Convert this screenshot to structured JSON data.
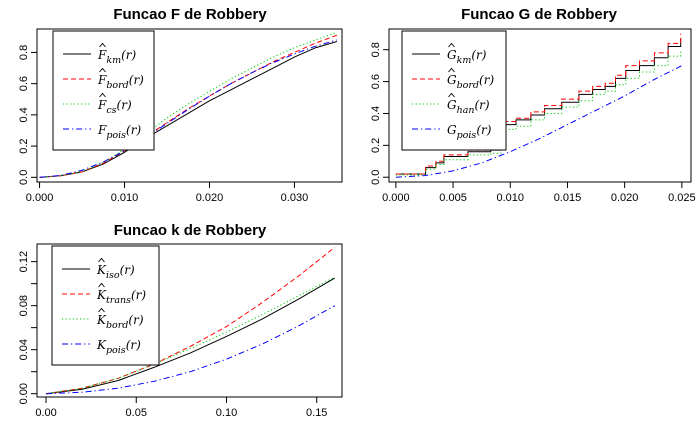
{
  "chart_data": [
    {
      "id": "F",
      "type": "line",
      "title": "Funcao F de Robbery",
      "xlabel": "",
      "ylabel": "",
      "xlim": [
        -0.0003,
        0.0356
      ],
      "ylim": [
        -0.03,
        0.95
      ],
      "x_ticks": [
        0.0,
        0.01,
        0.02,
        0.03
      ],
      "x_tick_labels": [
        "0.000",
        "0.010",
        "0.020",
        "0.030"
      ],
      "y_ticks": [
        0.0,
        0.2,
        0.4,
        0.6,
        0.8
      ],
      "y_tick_labels": [
        "0.0",
        "0.2",
        "0.4",
        "0.6",
        "0.8"
      ],
      "legend_position": "top-left",
      "series": [
        {
          "name": "F km(r)",
          "color": "#000000",
          "dash": "solid",
          "x": [
            0,
            0.0025,
            0.005,
            0.0075,
            0.01,
            0.0125,
            0.015,
            0.0175,
            0.02,
            0.0225,
            0.025,
            0.0275,
            0.03,
            0.0325,
            0.035
          ],
          "y": [
            0,
            0.01,
            0.035,
            0.085,
            0.16,
            0.25,
            0.33,
            0.41,
            0.49,
            0.56,
            0.63,
            0.7,
            0.77,
            0.83,
            0.87
          ]
        },
        {
          "name": "F bord(r)",
          "color": "#ff0000",
          "dash": "dashed",
          "x": [
            0,
            0.0025,
            0.005,
            0.0075,
            0.01,
            0.0125,
            0.015,
            0.0175,
            0.02,
            0.0225,
            0.025,
            0.0275,
            0.03,
            0.0325,
            0.035
          ],
          "y": [
            0,
            0.01,
            0.035,
            0.09,
            0.17,
            0.26,
            0.35,
            0.44,
            0.52,
            0.6,
            0.67,
            0.74,
            0.8,
            0.86,
            0.91
          ]
        },
        {
          "name": "F cs(r)",
          "color": "#00cd00",
          "dash": "dotted",
          "x": [
            0,
            0.0025,
            0.005,
            0.0075,
            0.01,
            0.0125,
            0.015,
            0.0175,
            0.02,
            0.0225,
            0.025,
            0.0275,
            0.03,
            0.0325,
            0.035
          ],
          "y": [
            0,
            0.01,
            0.037,
            0.095,
            0.18,
            0.28,
            0.38,
            0.47,
            0.55,
            0.63,
            0.7,
            0.77,
            0.83,
            0.88,
            0.93
          ]
        },
        {
          "name": "F pois(r)",
          "color": "#0000ff",
          "dash": "dotdash",
          "x": [
            0,
            0.0025,
            0.005,
            0.0075,
            0.01,
            0.0125,
            0.015,
            0.0175,
            0.02,
            0.0225,
            0.025,
            0.0275,
            0.03,
            0.0325,
            0.035
          ],
          "y": [
            0,
            0.012,
            0.045,
            0.098,
            0.17,
            0.255,
            0.345,
            0.435,
            0.52,
            0.6,
            0.67,
            0.735,
            0.79,
            0.84,
            0.88
          ]
        }
      ]
    },
    {
      "id": "G",
      "type": "line",
      "title": "Funcao G de Robbery",
      "xlabel": "",
      "ylabel": "",
      "xlim": [
        -0.0006,
        0.0258
      ],
      "ylim": [
        -0.03,
        0.93
      ],
      "x_ticks": [
        0.0,
        0.005,
        0.01,
        0.015,
        0.02,
        0.025
      ],
      "x_tick_labels": [
        "0.000",
        "0.005",
        "0.010",
        "0.015",
        "0.020",
        "0.025"
      ],
      "y_ticks": [
        0.0,
        0.2,
        0.4,
        0.6,
        0.8
      ],
      "y_tick_labels": [
        "0.0",
        "0.2",
        "0.4",
        "0.6",
        "0.8"
      ],
      "legend_position": "top-left",
      "series": [
        {
          "name": "G km(r)",
          "color": "#000000",
          "dash": "solid",
          "step": true,
          "x": [
            0,
            0.0013,
            0.0026,
            0.0035,
            0.0042,
            0.0063,
            0.0083,
            0.0092,
            0.0105,
            0.0118,
            0.013,
            0.0145,
            0.016,
            0.0172,
            0.0183,
            0.0192,
            0.0201,
            0.0213,
            0.0226,
            0.0238,
            0.0249
          ],
          "y": [
            0.02,
            0.02,
            0.06,
            0.09,
            0.13,
            0.16,
            0.17,
            0.33,
            0.36,
            0.39,
            0.43,
            0.47,
            0.52,
            0.55,
            0.57,
            0.62,
            0.67,
            0.7,
            0.75,
            0.82,
            0.87
          ]
        },
        {
          "name": "G bord(r)",
          "color": "#ff0000",
          "dash": "dashed",
          "step": true,
          "x": [
            0,
            0.0013,
            0.0026,
            0.0035,
            0.0042,
            0.0063,
            0.0083,
            0.0092,
            0.0105,
            0.0118,
            0.013,
            0.0145,
            0.016,
            0.0172,
            0.0183,
            0.0192,
            0.0201,
            0.0213,
            0.0226,
            0.0238,
            0.0249
          ],
          "y": [
            0.02,
            0.02,
            0.07,
            0.1,
            0.14,
            0.17,
            0.19,
            0.35,
            0.37,
            0.41,
            0.45,
            0.49,
            0.54,
            0.57,
            0.59,
            0.64,
            0.7,
            0.73,
            0.78,
            0.84,
            0.9
          ]
        },
        {
          "name": "G han(r)",
          "color": "#00cd00",
          "dash": "dotted",
          "step": true,
          "x": [
            0,
            0.0013,
            0.0026,
            0.0035,
            0.0042,
            0.0063,
            0.0083,
            0.0092,
            0.0105,
            0.0118,
            0.013,
            0.0145,
            0.016,
            0.0172,
            0.0183,
            0.0192,
            0.0201,
            0.0213,
            0.0226,
            0.0238,
            0.0249
          ],
          "y": [
            0.015,
            0.015,
            0.05,
            0.08,
            0.11,
            0.14,
            0.15,
            0.3,
            0.32,
            0.36,
            0.4,
            0.44,
            0.48,
            0.52,
            0.54,
            0.58,
            0.62,
            0.66,
            0.7,
            0.76,
            0.8
          ]
        },
        {
          "name": "G pois(r)",
          "color": "#0000ff",
          "dash": "dotdash",
          "x": [
            0,
            0.0025,
            0.005,
            0.0075,
            0.01,
            0.0125,
            0.015,
            0.0175,
            0.02,
            0.0225,
            0.025
          ],
          "y": [
            0,
            0.01,
            0.04,
            0.09,
            0.16,
            0.24,
            0.33,
            0.42,
            0.51,
            0.61,
            0.7
          ]
        }
      ]
    },
    {
      "id": "K",
      "type": "line",
      "title": "Funcao k de Robbery",
      "xlabel": "",
      "ylabel": "",
      "xlim": [
        -0.005,
        0.164
      ],
      "ylim": [
        -0.003,
        0.136
      ],
      "x_ticks": [
        0.0,
        0.05,
        0.1,
        0.15
      ],
      "x_tick_labels": [
        "0.00",
        "0.05",
        "0.10",
        "0.15"
      ],
      "y_ticks": [
        0.0,
        0.02,
        0.04,
        0.06,
        0.08,
        0.1,
        0.12
      ],
      "y_tick_labels": [
        "0.00",
        "0.04",
        "0.08",
        "0.12"
      ],
      "y_tick_labels_at": [
        0.0,
        0.04,
        0.08,
        0.12
      ],
      "legend_position": "top-left",
      "series": [
        {
          "name": "K iso(r)",
          "color": "#000000",
          "dash": "solid",
          "x": [
            0,
            0.02,
            0.04,
            0.06,
            0.08,
            0.1,
            0.12,
            0.14,
            0.16
          ],
          "y": [
            0,
            0.004,
            0.012,
            0.024,
            0.037,
            0.052,
            0.068,
            0.086,
            0.105
          ]
        },
        {
          "name": "K trans(r)",
          "color": "#ff0000",
          "dash": "dashed",
          "x": [
            0,
            0.02,
            0.04,
            0.06,
            0.08,
            0.1,
            0.12,
            0.14,
            0.16
          ],
          "y": [
            0,
            0.005,
            0.014,
            0.027,
            0.043,
            0.061,
            0.083,
            0.107,
            0.133
          ]
        },
        {
          "name": "K bord(r)",
          "color": "#00cd00",
          "dash": "dotted",
          "x": [
            0,
            0.02,
            0.04,
            0.06,
            0.08,
            0.1,
            0.12,
            0.14,
            0.16
          ],
          "y": [
            0,
            0.005,
            0.014,
            0.027,
            0.041,
            0.056,
            0.072,
            0.089,
            0.106
          ]
        },
        {
          "name": "K pois(r)",
          "color": "#0000ff",
          "dash": "dotdash",
          "x": [
            0,
            0.02,
            0.04,
            0.06,
            0.08,
            0.1,
            0.12,
            0.14,
            0.16
          ],
          "y": [
            0,
            0.0013,
            0.005,
            0.0113,
            0.02,
            0.0314,
            0.0452,
            0.0616,
            0.08
          ]
        }
      ]
    }
  ],
  "legends": {
    "F": [
      {
        "base": "F",
        "hat": true,
        "sub": "km",
        "arg": "(r)"
      },
      {
        "base": "F",
        "hat": true,
        "sub": "bord",
        "arg": "(r)"
      },
      {
        "base": "F",
        "hat": true,
        "sub": "cs",
        "arg": "(r)"
      },
      {
        "base": "F",
        "hat": false,
        "sub": "pois",
        "arg": "(r)"
      }
    ],
    "G": [
      {
        "base": "G",
        "hat": true,
        "sub": "km",
        "arg": "(r)"
      },
      {
        "base": "G",
        "hat": true,
        "sub": "bord",
        "arg": "(r)"
      },
      {
        "base": "G",
        "hat": true,
        "sub": "han",
        "arg": "(r)"
      },
      {
        "base": "G",
        "hat": false,
        "sub": "pois",
        "arg": "(r)"
      }
    ],
    "K": [
      {
        "base": "K",
        "hat": true,
        "sub": "iso",
        "arg": "(r)"
      },
      {
        "base": "K",
        "hat": true,
        "sub": "trans",
        "arg": "(r)"
      },
      {
        "base": "K",
        "hat": true,
        "sub": "bord",
        "arg": "(r)"
      },
      {
        "base": "K",
        "hat": false,
        "sub": "pois",
        "arg": "(r)"
      }
    ]
  }
}
